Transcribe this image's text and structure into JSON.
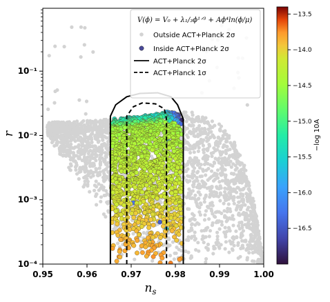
{
  "chart_data": {
    "type": "scatter",
    "title": "",
    "xlabel": "n_s",
    "ylabel": "r",
    "xlim": [
      0.95,
      1.0
    ],
    "ylim": [
      0.0001,
      0.95
    ],
    "yscale": "log",
    "xticks": [
      0.95,
      0.96,
      0.97,
      0.98,
      0.99,
      1.0
    ],
    "xtick_labels": [
      "0.95",
      "0.96",
      "0.97",
      "0.98",
      "0.99",
      "1.00"
    ],
    "yticks": [
      0.0001,
      0.001,
      0.01,
      0.1
    ],
    "ytick_labels": [
      "10⁻⁴",
      "10⁻³",
      "10⁻²",
      "10⁻¹"
    ],
    "legend": {
      "position": "upper-right",
      "formula": "V(ϕ) = V₀ + λ₁/₃ϕ¹ᐟ³ + Aϕ⁴ln(ϕ/μ)",
      "entries": [
        "Outside ACT+Planck 2σ",
        "Inside ACT+Planck 2σ",
        "ACT+Planck 2σ",
        "ACT+Planck 1σ"
      ]
    },
    "series": [
      {
        "name": "Outside ACT+Planck 2σ",
        "color": "#d3d3d3",
        "marker": "circle",
        "region": {
          "envelope_upper": [
            [
              0.951,
              0.016
            ],
            [
              0.96,
              0.017
            ],
            [
              0.97,
              0.019
            ],
            [
              0.975,
              0.021
            ],
            [
              0.98,
              0.022
            ],
            [
              0.983,
              0.024
            ],
            [
              0.986,
              0.02
            ],
            [
              0.99,
              0.015
            ],
            [
              0.993,
              0.009
            ],
            [
              0.996,
              0.003
            ],
            [
              0.998,
              0.0008
            ],
            [
              0.999,
              0.0003
            ],
            [
              1.0,
              0.0001
            ]
          ],
          "envelope_lower": [
            [
              0.951,
              0.01
            ],
            [
              0.958,
              0.0018
            ],
            [
              0.962,
              0.0008
            ],
            [
              0.966,
              0.0003
            ],
            [
              0.968,
              0.0001
            ]
          ],
          "x_range": [
            0.951,
            1.0
          ],
          "y_range": [
            0.0001,
            0.05
          ]
        }
      },
      {
        "name": "Inside ACT+Planck 2σ",
        "color_by": "-log10A",
        "marker": "circle",
        "region": {
          "x_range": [
            0.9655,
            0.9815
          ],
          "y_range": [
            0.0001,
            0.03
          ],
          "top_edge": [
            [
              0.9655,
              0.018
            ],
            [
              0.97,
              0.0195
            ],
            [
              0.975,
              0.021
            ],
            [
              0.978,
              0.024
            ],
            [
              0.9805,
              0.022
            ],
            [
              0.9815,
              0.018
            ]
          ]
        }
      }
    ],
    "contours": [
      {
        "name": "ACT+Planck 2σ",
        "style": "solid",
        "color": "#000000",
        "points": [
          [
            0.9653,
            0.0001
          ],
          [
            0.9653,
            0.02
          ],
          [
            0.9665,
            0.03
          ],
          [
            0.969,
            0.04
          ],
          [
            0.972,
            0.045
          ],
          [
            0.976,
            0.046
          ],
          [
            0.979,
            0.04
          ],
          [
            0.9805,
            0.03
          ],
          [
            0.9818,
            0.018
          ],
          [
            0.9818,
            0.0001
          ]
        ]
      },
      {
        "name": "ACT+Planck 1σ",
        "style": "dashed",
        "color": "#000000",
        "points": [
          [
            0.969,
            0.0001
          ],
          [
            0.969,
            0.02
          ],
          [
            0.9705,
            0.028
          ],
          [
            0.9725,
            0.032
          ],
          [
            0.9755,
            0.031
          ],
          [
            0.9775,
            0.026
          ],
          [
            0.978,
            0.018
          ],
          [
            0.978,
            0.0001
          ]
        ]
      }
    ],
    "colorbar": {
      "label": "−log 10A",
      "min": -17.0,
      "max": -13.4,
      "ticks": [
        -13.5,
        -14.0,
        -14.5,
        -15.0,
        -15.5,
        -16.0,
        -16.5
      ],
      "tick_labels": [
        "−13.5",
        "−14.0",
        "−14.5",
        "−15.0",
        "−15.5",
        "−16.0",
        "−16.5"
      ],
      "colormap": "turbo"
    }
  }
}
